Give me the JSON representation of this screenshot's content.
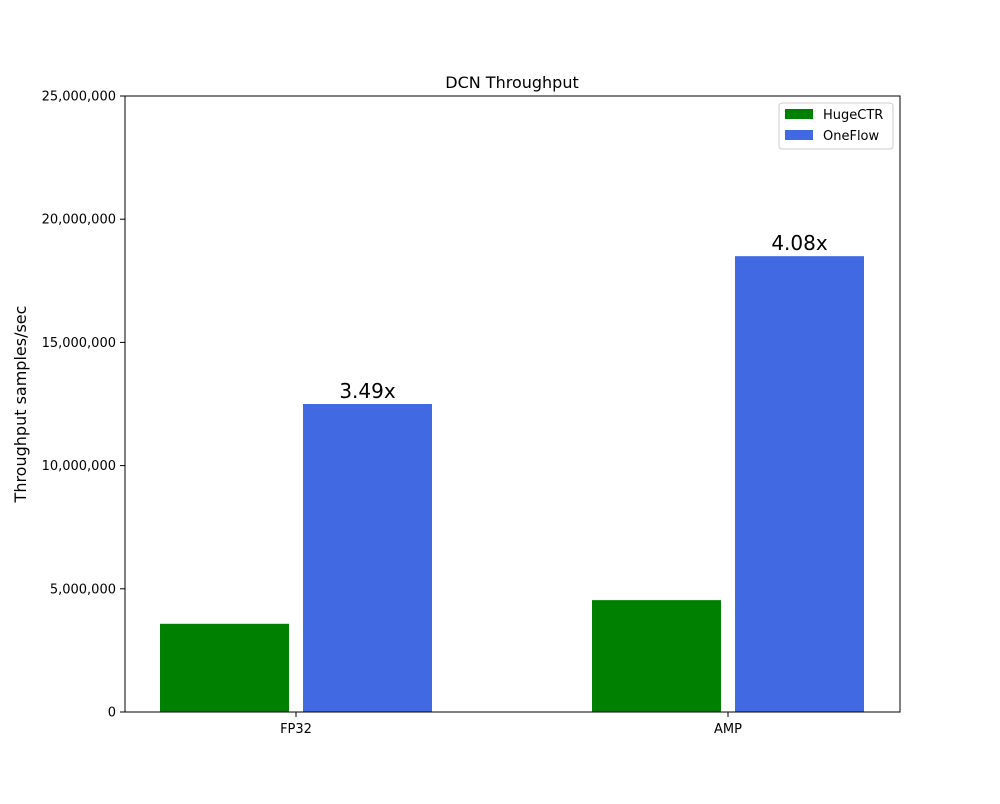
{
  "chart_data": {
    "type": "bar",
    "title": "DCN Throughput",
    "xlabel": "",
    "ylabel": "Throughput samples/sec",
    "categories": [
      "FP32",
      "AMP"
    ],
    "series": [
      {
        "name": "HugeCTR",
        "color": "#008000",
        "values": [
          3580000,
          4540000
        ]
      },
      {
        "name": "OneFlow",
        "color": "#4169e1",
        "values": [
          12500000,
          18500000
        ]
      }
    ],
    "bar_annotations": [
      {
        "series": "OneFlow",
        "category": "FP32",
        "text": "3.49x"
      },
      {
        "series": "OneFlow",
        "category": "AMP",
        "text": "4.08x"
      }
    ],
    "ylim": [
      0,
      25000000
    ],
    "yticks": [
      0,
      5000000,
      10000000,
      15000000,
      20000000,
      25000000
    ],
    "ytick_labels": [
      "0",
      "5,000,000",
      "10,000,000",
      "15,000,000",
      "20,000,000",
      "25,000,000"
    ],
    "grid": false,
    "legend_position": "top-right"
  }
}
